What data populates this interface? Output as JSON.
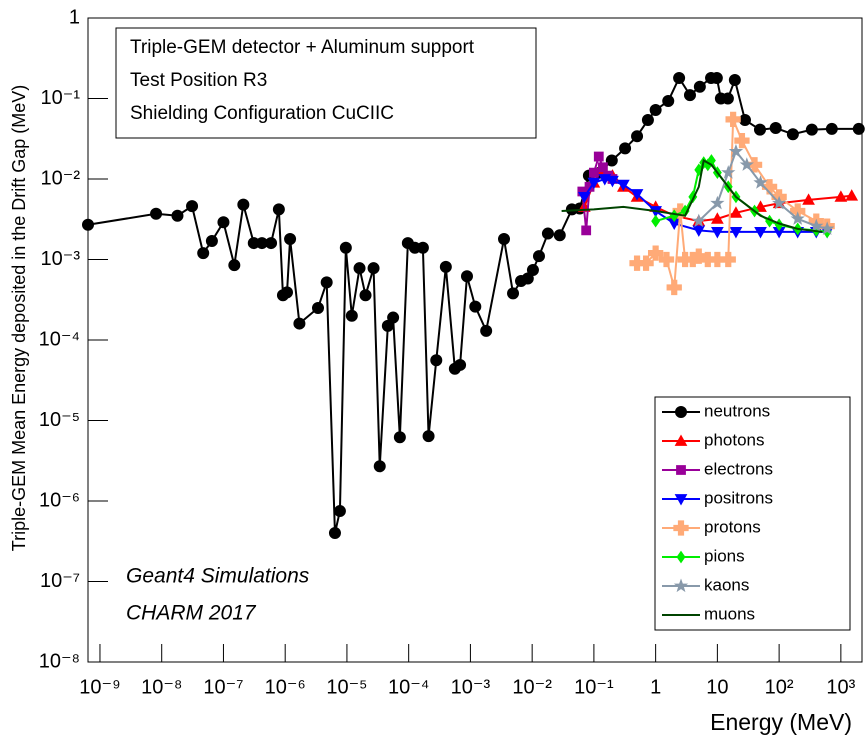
{
  "chart_data": {
    "type": "line",
    "xlabel": "Energy (MeV)",
    "ylabel": "Triple-GEM Mean Energy deposited in the Drift Gap (MeV)",
    "info_box": [
      "Triple-GEM detector + Aluminum support",
      "Test Position R3",
      "Shielding Configuration CuCIIC"
    ],
    "annotations": [
      "Geant4 Simulations",
      "CHARM 2017"
    ],
    "xscale": "log",
    "yscale": "log",
    "xlim": [
      6.4e-10,
      2200
    ],
    "ylim": [
      1e-08,
      1
    ],
    "xticks": [
      {
        "value": 1e-09,
        "label": "10⁻⁹"
      },
      {
        "value": 1e-08,
        "label": "10⁻⁸"
      },
      {
        "value": 1e-07,
        "label": "10⁻⁷"
      },
      {
        "value": 1e-06,
        "label": "10⁻⁶"
      },
      {
        "value": 1e-05,
        "label": "10⁻⁵"
      },
      {
        "value": 0.0001,
        "label": "10⁻⁴"
      },
      {
        "value": 0.001,
        "label": "10⁻³"
      },
      {
        "value": 0.01,
        "label": "10⁻²"
      },
      {
        "value": 0.1,
        "label": "10⁻¹"
      },
      1,
      10,
      {
        "value": 100,
        "label": "10²"
      },
      {
        "value": 1000,
        "label": "10³"
      }
    ],
    "yticks": [
      {
        "value": 1e-08,
        "label": "10⁻⁸"
      },
      {
        "value": 1e-07,
        "label": "10⁻⁷"
      },
      {
        "value": 1e-06,
        "label": "10⁻⁶"
      },
      {
        "value": 1e-05,
        "label": "10⁻⁵"
      },
      {
        "value": 0.0001,
        "label": "10⁻⁴"
      },
      {
        "value": 0.001,
        "label": "10⁻³"
      },
      {
        "value": 0.01,
        "label": "10⁻²"
      },
      {
        "value": 0.1,
        "label": "10⁻¹"
      },
      1
    ],
    "legend": "lower right",
    "series": [
      {
        "name": "neutrons",
        "color": "#000000",
        "marker": "circle",
        "x": [
          6.4e-10,
          8.1e-09,
          1.8e-08,
          3.1e-08,
          4.7e-08,
          6.5e-08,
          1e-07,
          1.5e-07,
          2.1e-07,
          3.1e-07,
          4.2e-07,
          5.9e-07,
          7.9e-07,
          9.2e-07,
          1.07e-06,
          1.2e-06,
          1.7e-06,
          3.4e-06,
          4.7e-06,
          6.4e-06,
          7.7e-06,
          9.6e-06,
          1.2e-05,
          1.6e-05,
          2e-05,
          2.7e-05,
          3.4e-05,
          4.6e-05,
          5.6e-05,
          7.2e-05,
          9.7e-05,
          0.000126,
          0.00017,
          0.00021,
          0.00028,
          0.0004,
          0.00056,
          0.00068,
          0.00088,
          0.0012,
          0.0018,
          0.0035,
          0.0049,
          0.0066,
          0.0085,
          0.0103,
          0.0129,
          0.018,
          0.028,
          0.044,
          0.059,
          0.083,
          0.125,
          0.195,
          0.32,
          0.5,
          0.75,
          1.0,
          1.6,
          2.4,
          3.6,
          5.2,
          7.9,
          9.8,
          11.4,
          14.8,
          19.2,
          28,
          49,
          88,
          167,
          339,
          714,
          1950
        ],
        "values": [
          0.0027,
          0.0037,
          0.0035,
          0.0046,
          0.0012,
          0.0017,
          0.0029,
          0.00085,
          0.0048,
          0.0016,
          0.0016,
          0.0016,
          0.0042,
          0.00036,
          0.00039,
          0.0018,
          0.00016,
          0.00025,
          0.00052,
          4e-07,
          7.5e-07,
          0.0014,
          0.0002,
          0.00078,
          0.00036,
          0.00078,
          2.7e-06,
          0.00015,
          0.00019,
          6.2e-06,
          0.0016,
          0.0014,
          0.0014,
          6.4e-06,
          5.6e-05,
          0.00081,
          4.4e-05,
          4.9e-05,
          0.00062,
          0.00026,
          0.00013,
          0.0018,
          0.00038,
          0.00054,
          0.00058,
          0.00074,
          0.0011,
          0.0021,
          0.002,
          0.0042,
          0.0043,
          0.011,
          0.012,
          0.017,
          0.024,
          0.034,
          0.054,
          0.072,
          0.093,
          0.18,
          0.11,
          0.14,
          0.18,
          0.18,
          0.1,
          0.1,
          0.17,
          0.054,
          0.041,
          0.043,
          0.036,
          0.041,
          0.042,
          0.042
        ]
      },
      {
        "name": "photons",
        "color": "#ff0000",
        "marker": "triangle",
        "x": [
          0.07,
          0.1,
          0.13,
          0.2,
          0.3,
          0.5,
          1,
          2,
          5,
          10,
          20,
          50,
          100,
          300,
          1000,
          1500
        ],
        "values": [
          0.0045,
          0.009,
          0.013,
          0.011,
          0.008,
          0.006,
          0.0045,
          0.0035,
          0.003,
          0.0032,
          0.0038,
          0.0045,
          0.005,
          0.0055,
          0.006,
          0.0062
        ]
      },
      {
        "name": "electrons",
        "color": "#990099",
        "marker": "square",
        "x": [
          0.065,
          0.075,
          0.085,
          0.1,
          0.12,
          0.14,
          0.17,
          0.2
        ],
        "values": [
          0.007,
          0.0023,
          0.008,
          0.012,
          0.019,
          0.014,
          0.011,
          0.01
        ]
      },
      {
        "name": "positrons",
        "color": "#0000ff",
        "marker": "triangle-down",
        "x": [
          0.07,
          0.1,
          0.15,
          0.2,
          0.3,
          0.5,
          1,
          2,
          5,
          10,
          20,
          50,
          100,
          200,
          400,
          600
        ],
        "values": [
          0.006,
          0.009,
          0.01,
          0.0095,
          0.0085,
          0.0065,
          0.004,
          0.0028,
          0.0023,
          0.0022,
          0.0022,
          0.0022,
          0.0022,
          0.0022,
          0.0022,
          0.0022
        ]
      },
      {
        "name": "protons",
        "color": "#ffaa77",
        "marker": "cross",
        "x": [
          0.5,
          0.7,
          1,
          1.5,
          2,
          2.5,
          3,
          4,
          5,
          7,
          10,
          15,
          18,
          25,
          40,
          70,
          100,
          200,
          400,
          600
        ],
        "values": [
          0.0009,
          0.0009,
          0.0012,
          0.001,
          0.00045,
          0.004,
          0.001,
          0.001,
          0.0011,
          0.001,
          0.001,
          0.001,
          0.055,
          0.03,
          0.015,
          0.008,
          0.006,
          0.004,
          0.003,
          0.0026
        ]
      },
      {
        "name": "pions",
        "color": "#00ee00",
        "marker": "diamond",
        "x": [
          1,
          2,
          3,
          4,
          5,
          6,
          7,
          8,
          10,
          15,
          20,
          40,
          70,
          100,
          200,
          400,
          600
        ],
        "values": [
          0.003,
          0.0035,
          0.004,
          0.006,
          0.013,
          0.016,
          0.015,
          0.017,
          0.012,
          0.008,
          0.006,
          0.004,
          0.003,
          0.0027,
          0.0024,
          0.0023,
          0.0022
        ]
      },
      {
        "name": "kaons",
        "color": "#8899aa",
        "marker": "star",
        "x": [
          5,
          10,
          15,
          20,
          30,
          50,
          100,
          200,
          400,
          600
        ],
        "values": [
          0.003,
          0.005,
          0.012,
          0.022,
          0.015,
          0.009,
          0.005,
          0.0032,
          0.0026,
          0.0024
        ]
      },
      {
        "name": "muons",
        "color": "#004400",
        "marker": "none",
        "x": [
          0.03,
          0.1,
          0.3,
          1,
          3,
          5,
          6,
          8,
          12,
          20,
          50,
          100,
          200,
          500
        ],
        "values": [
          0.004,
          0.0042,
          0.0045,
          0.004,
          0.0035,
          0.008,
          0.017,
          0.015,
          0.01,
          0.006,
          0.0035,
          0.0028,
          0.0024,
          0.0022
        ]
      }
    ]
  }
}
